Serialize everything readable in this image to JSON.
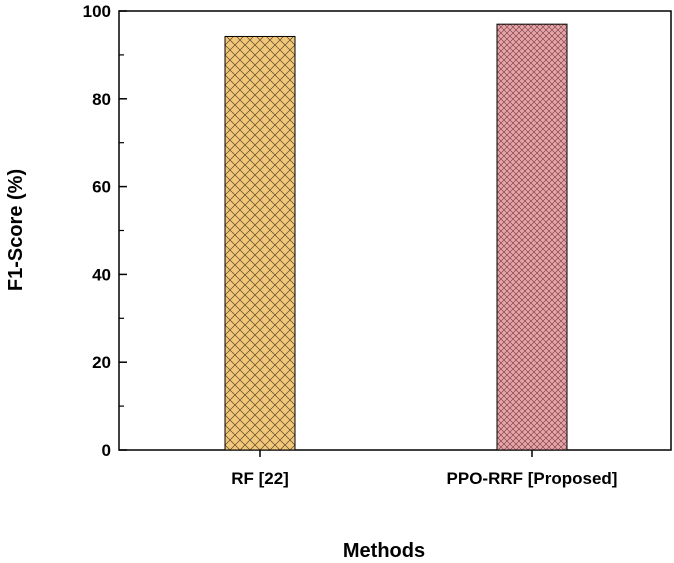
{
  "chart_data": {
    "type": "bar",
    "categories": [
      "RF [22]",
      "PPO-RRF [Proposed]"
    ],
    "values": [
      94.2,
      97.0
    ],
    "xlabel": "Methods",
    "ylabel": "F1-Score (%)",
    "ylim": [
      0,
      100
    ],
    "yticks": [
      0,
      20,
      40,
      60,
      80,
      100
    ],
    "grid": false,
    "legend": "none",
    "bar_colors": [
      "#f3c77a",
      "#e7a3a8"
    ],
    "bar_patterns": [
      "crosshatch",
      "fine-crosshatch"
    ]
  }
}
